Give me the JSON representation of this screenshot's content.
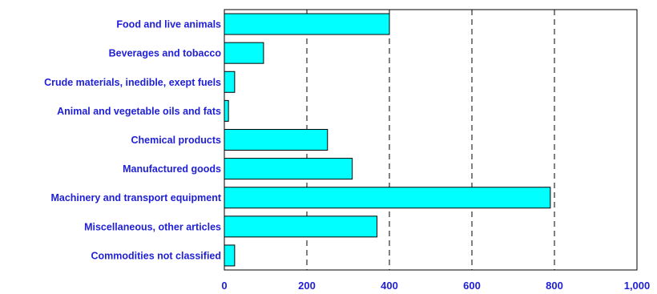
{
  "chart_data": {
    "type": "bar",
    "orientation": "horizontal",
    "title": "",
    "xlabel": "",
    "ylabel": "",
    "categories": [
      "Food and live animals",
      "Beverages and tobacco",
      "Crude materials, inedible, exept fuels",
      "Animal and vegetable oils and fats",
      "Chemical products",
      "Manufactured goods",
      "Machinery and transport equipment",
      "Miscellaneous, other articles",
      "Commodities not classified"
    ],
    "values": [
      400,
      95,
      25,
      10,
      250,
      310,
      790,
      370,
      25
    ],
    "xlim": [
      0,
      1000
    ],
    "ticks": [
      0,
      200,
      400,
      600,
      800,
      1000
    ],
    "tick_labels": [
      "0",
      "200",
      "400",
      "600",
      "800",
      "1,000"
    ],
    "grid": "vertical dashed",
    "bar_color": "#00ffff",
    "label_color": "#1f1fd6"
  }
}
